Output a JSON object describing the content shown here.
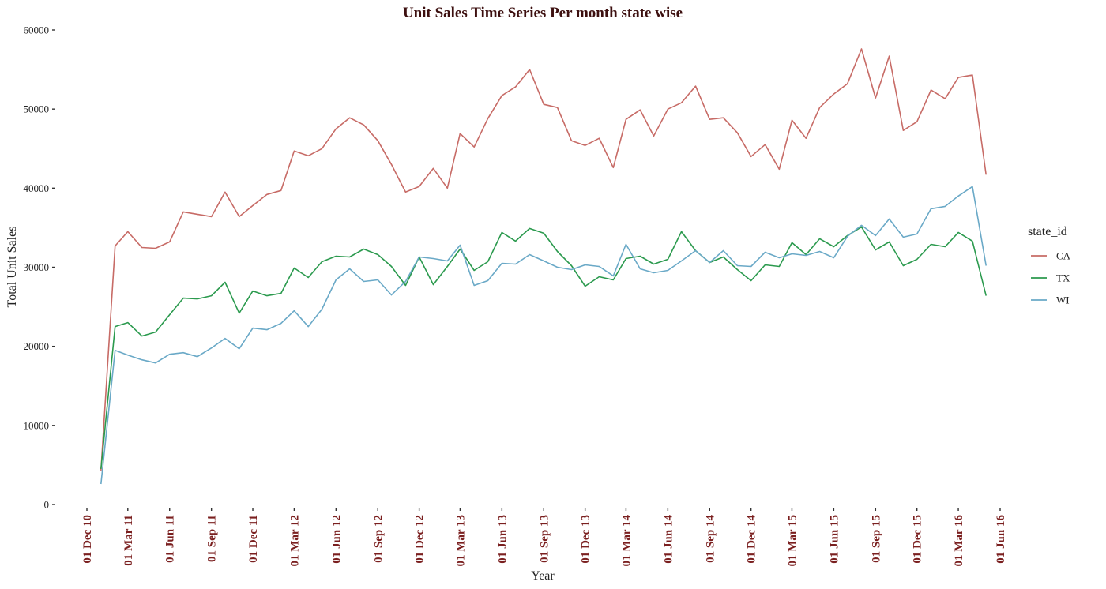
{
  "chart_data": {
    "type": "line",
    "title": "Unit Sales Time Series Per month state wise",
    "xlabel": "Year",
    "ylabel": "Total Unit Sales",
    "ylim": [
      0,
      60000
    ],
    "yticks": [
      0,
      10000,
      20000,
      30000,
      40000,
      50000,
      60000
    ],
    "ytick_labels": [
      "0",
      "10000",
      "20000",
      "30000",
      "40000",
      "50000",
      "60000"
    ],
    "xlim": [
      "2010-12-01",
      "2016-06-01"
    ],
    "xticks": [
      "2010-12-01",
      "2011-03-01",
      "2011-06-01",
      "2011-09-01",
      "2011-12-01",
      "2012-03-01",
      "2012-06-01",
      "2012-09-01",
      "2012-12-01",
      "2013-03-01",
      "2013-06-01",
      "2013-09-01",
      "2013-12-01",
      "2014-03-01",
      "2014-06-01",
      "2014-09-01",
      "2014-12-01",
      "2015-03-01",
      "2015-06-01",
      "2015-09-01",
      "2015-12-01",
      "2016-03-01",
      "2016-06-01"
    ],
    "xtick_labels": [
      "01 Dec 10",
      "01 Mar 11",
      "01 Jun 11",
      "01 Sep 11",
      "01 Dec 11",
      "01 Mar 12",
      "01 Jun 12",
      "01 Sep 12",
      "01 Dec 12",
      "01 Mar 13",
      "01 Jun 13",
      "01 Sep 13",
      "01 Dec 13",
      "01 Mar 14",
      "01 Jun 14",
      "01 Sep 14",
      "01 Dec 14",
      "01 Mar 15",
      "01 Jun 15",
      "01 Sep 15",
      "01 Dec 15",
      "01 Mar 16",
      "01 Jun 16"
    ],
    "grid": false,
    "legend": {
      "title": "state_id",
      "position": "right"
    },
    "x": [
      "2011-01-01",
      "2011-02-01",
      "2011-03-01",
      "2011-04-01",
      "2011-05-01",
      "2011-06-01",
      "2011-07-01",
      "2011-08-01",
      "2011-09-01",
      "2011-10-01",
      "2011-11-01",
      "2011-12-01",
      "2012-01-01",
      "2012-02-01",
      "2012-03-01",
      "2012-04-01",
      "2012-05-01",
      "2012-06-01",
      "2012-07-01",
      "2012-08-01",
      "2012-09-01",
      "2012-10-01",
      "2012-11-01",
      "2012-12-01",
      "2013-01-01",
      "2013-02-01",
      "2013-03-01",
      "2013-04-01",
      "2013-05-01",
      "2013-06-01",
      "2013-07-01",
      "2013-08-01",
      "2013-09-01",
      "2013-10-01",
      "2013-11-01",
      "2013-12-01",
      "2014-01-01",
      "2014-02-01",
      "2014-03-01",
      "2014-04-01",
      "2014-05-01",
      "2014-06-01",
      "2014-07-01",
      "2014-08-01",
      "2014-09-01",
      "2014-10-01",
      "2014-11-01",
      "2014-12-01",
      "2015-01-01",
      "2015-02-01",
      "2015-03-01",
      "2015-04-01",
      "2015-05-01",
      "2015-06-01",
      "2015-07-01",
      "2015-08-01",
      "2015-09-01",
      "2015-10-01",
      "2015-11-01",
      "2015-12-01",
      "2016-01-01",
      "2016-02-01",
      "2016-03-01",
      "2016-04-01",
      "2016-05-01"
    ],
    "series": [
      {
        "name": "CA",
        "color": "#c76b66",
        "values": [
          4300,
          32700,
          34500,
          32500,
          32400,
          33200,
          37000,
          36700,
          36400,
          39500,
          36400,
          37800,
          39200,
          39700,
          44700,
          44100,
          45000,
          47500,
          48900,
          48000,
          46000,
          43000,
          39500,
          40200,
          42500,
          40000,
          46900,
          45200,
          48800,
          51700,
          52800,
          55000,
          50600,
          50200,
          46000,
          45400,
          46300,
          42600,
          48700,
          49900,
          46600,
          50000,
          50800,
          52900,
          48700,
          48900,
          47000,
          44000,
          45500,
          42400,
          48600,
          46300,
          50200,
          51900,
          53200,
          57600,
          51400,
          56700,
          47300,
          48400,
          52400,
          51300,
          54000,
          54300,
          41700
        ]
      },
      {
        "name": "TX",
        "color": "#2b9a4e",
        "values": [
          4500,
          22500,
          23000,
          21300,
          21800,
          24000,
          26100,
          26000,
          26400,
          28100,
          24200,
          27000,
          26400,
          26700,
          29900,
          28700,
          30700,
          31400,
          31300,
          32300,
          31600,
          30100,
          27700,
          31300,
          27800,
          30100,
          32300,
          29600,
          30700,
          34400,
          33300,
          34900,
          34300,
          32000,
          30200,
          27600,
          28800,
          28400,
          31100,
          31400,
          30400,
          31000,
          34500,
          32100,
          30600,
          31300,
          29700,
          28300,
          30300,
          30100,
          33100,
          31600,
          33600,
          32600,
          34000,
          35100,
          32200,
          33200,
          30200,
          31000,
          32900,
          32600,
          34400,
          33300,
          26400
        ]
      },
      {
        "name": "WI",
        "color": "#6aa9c7",
        "values": [
          2600,
          19500,
          18900,
          18300,
          17900,
          19000,
          19200,
          18700,
          19800,
          21000,
          19700,
          22300,
          22100,
          22900,
          24500,
          22500,
          24700,
          28400,
          29800,
          28200,
          28400,
          26500,
          28200,
          31300,
          31100,
          30800,
          32800,
          27700,
          28300,
          30500,
          30400,
          31600,
          30800,
          30000,
          29700,
          30300,
          30100,
          28900,
          32900,
          29800,
          29300,
          29600,
          30800,
          32100,
          30600,
          32100,
          30200,
          30100,
          31900,
          31200,
          31700,
          31500,
          32000,
          31200,
          33900,
          35300,
          34000,
          36100,
          33800,
          34200,
          37400,
          37700,
          39000,
          40200,
          30200
        ]
      }
    ]
  }
}
